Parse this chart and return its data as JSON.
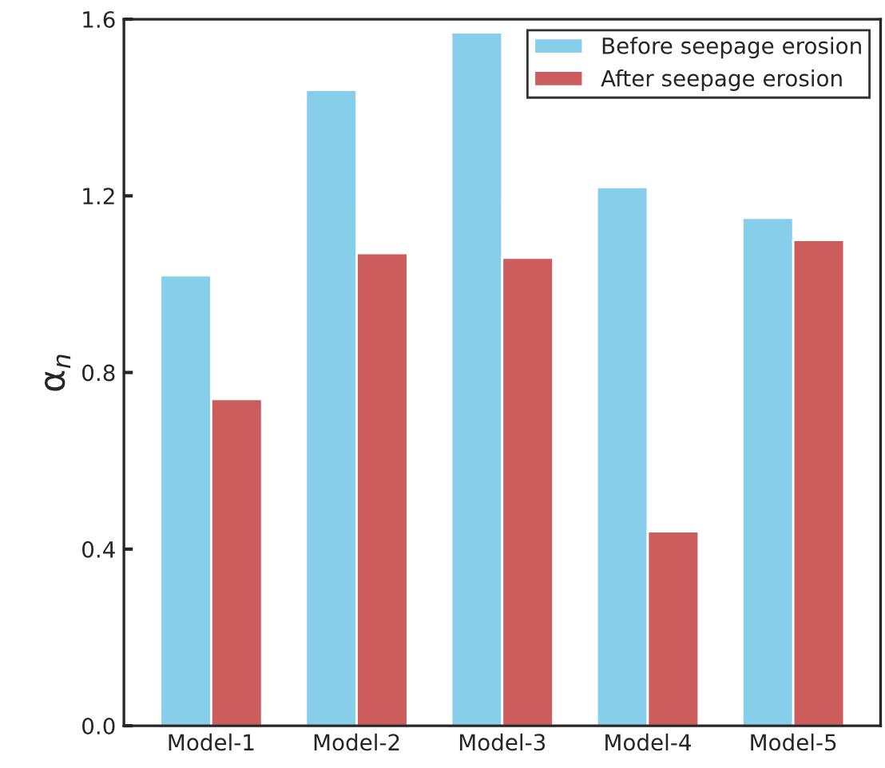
{
  "chart_data": {
    "type": "bar",
    "ylabel": "α$_{n}$",
    "categories": [
      "Model-1",
      "Model-2",
      "Model-3",
      "Model-4",
      "Model-5"
    ],
    "series": [
      {
        "name": "Before seepage erosion",
        "color": "#87ceeb",
        "values": [
          1.02,
          1.44,
          1.57,
          1.22,
          1.15
        ]
      },
      {
        "name": "After seepage erosion",
        "color": "#cd5c5c",
        "values": [
          0.74,
          1.07,
          1.06,
          0.44,
          1.1
        ]
      }
    ],
    "ylim": [
      0,
      1.6
    ],
    "yticks": [
      {
        "value": 0,
        "label": "0.0"
      },
      {
        "value": 0.4,
        "label": "0.4"
      },
      {
        "value": 0.8,
        "label": "0.8"
      },
      {
        "value": 1.2,
        "label": "1.2"
      },
      {
        "value": 1.6,
        "label": "1.6"
      }
    ],
    "grid": false,
    "legend": "top right"
  }
}
